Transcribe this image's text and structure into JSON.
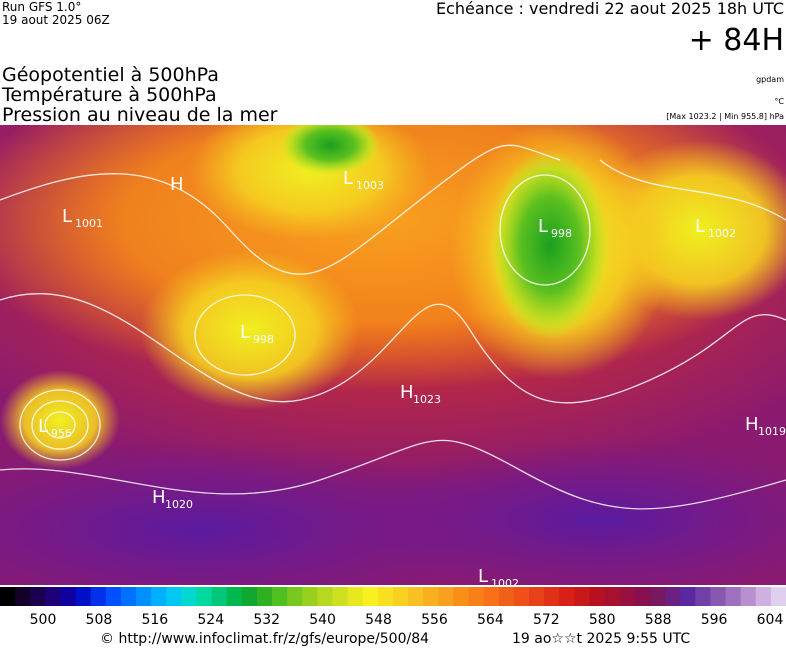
{
  "header": {
    "run": "Run GFS 1.0°",
    "date": "19 aout 2025 06Z",
    "echeance": "Echéance : vendredi 22 aout 2025 18h UTC",
    "lead": "+ 84H"
  },
  "legend_text": {
    "line1": "Géopotentiel à 500hPa",
    "line2": "Température à 500hPa",
    "line3": "Pression au niveau de la mer",
    "unit1": "gpdam",
    "unit2": "°C",
    "range": "[Max 1023.2 | Min 955.8] hPa"
  },
  "pressure_centers": [
    {
      "symbol": "H"
    },
    {
      "symbol": "L",
      "value": "1001"
    },
    {
      "symbol": "L",
      "value": "1003"
    },
    {
      "symbol": "L",
      "value": "998"
    },
    {
      "symbol": "L",
      "value": "1002"
    },
    {
      "symbol": "L",
      "value": "998"
    },
    {
      "symbol": "H",
      "value": "1023"
    },
    {
      "symbol": "L",
      "value": "956"
    },
    {
      "symbol": "H",
      "value": "1019"
    },
    {
      "symbol": "H",
      "value": "1020"
    },
    {
      "symbol": "L",
      "value": "1002"
    }
  ],
  "colorbar": {
    "ticks": [
      500,
      508,
      516,
      524,
      532,
      540,
      548,
      556,
      564,
      572,
      580,
      588,
      596,
      604
    ]
  },
  "footer": {
    "url": "© http://www.infoclimat.fr/z/gfs/europe/500/84",
    "timestamp": "19 ao☆☆t 2025  9:55 UTC"
  }
}
